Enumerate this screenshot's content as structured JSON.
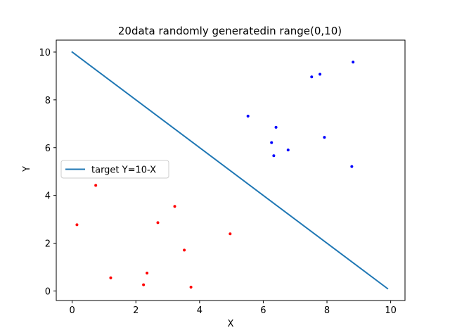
{
  "chart_data": {
    "type": "scatter",
    "title": "20data randomly generatedin range(0,10)",
    "xlabel": "X",
    "ylabel": "Y",
    "xlim": [
      -0.5,
      10.45
    ],
    "ylim": [
      -0.4,
      10.5
    ],
    "xticks": [
      0,
      2,
      4,
      6,
      8,
      10
    ],
    "yticks": [
      0,
      2,
      4,
      6,
      8,
      10
    ],
    "xtick_labels": [
      "0",
      "2",
      "4",
      "6",
      "8",
      "10"
    ],
    "ytick_labels": [
      "0",
      "2",
      "4",
      "6",
      "8",
      "10"
    ],
    "grid": false,
    "legend": {
      "placement": "center-left",
      "entries": [
        "target Y=10-X"
      ]
    },
    "line": {
      "name": "target Y=10-X",
      "color": "#1f77b4",
      "x": [
        0,
        9.9
      ],
      "y": [
        10,
        0.1
      ]
    },
    "series": [
      {
        "color": "#ff0000",
        "points": [
          [
            0.15,
            2.77
          ],
          [
            0.74,
            4.42
          ],
          [
            1.21,
            0.55
          ],
          [
            2.24,
            0.26
          ],
          [
            2.35,
            0.75
          ],
          [
            2.69,
            2.86
          ],
          [
            3.22,
            3.54
          ],
          [
            3.52,
            1.71
          ],
          [
            3.73,
            0.16
          ],
          [
            4.96,
            2.39
          ]
        ]
      },
      {
        "color": "#0000ff",
        "points": [
          [
            5.52,
            7.32
          ],
          [
            6.26,
            6.21
          ],
          [
            6.33,
            5.66
          ],
          [
            6.4,
            6.85
          ],
          [
            6.78,
            5.9
          ],
          [
            7.52,
            8.96
          ],
          [
            7.78,
            9.07
          ],
          [
            7.92,
            6.43
          ],
          [
            8.78,
            5.21
          ],
          [
            8.82,
            9.58
          ]
        ]
      }
    ]
  }
}
